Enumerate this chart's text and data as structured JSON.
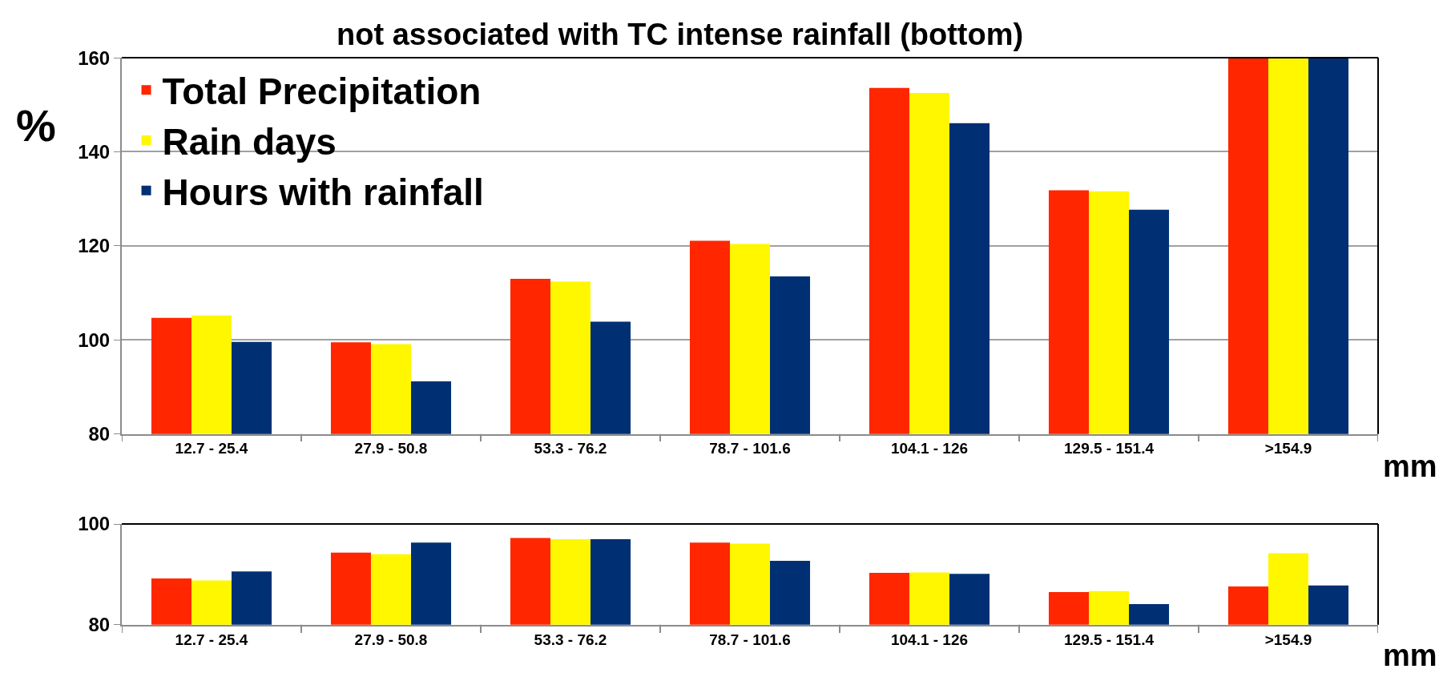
{
  "chart_data": [
    {
      "type": "bar",
      "title": "not associated with TC intense rainfall (bottom)",
      "ylabel": "%",
      "xlabel": "mm",
      "categories": [
        "12.7 - 25.4",
        "27.9 - 50.8",
        "53.3 - 76.2",
        "78.7 - 101.6",
        "104.1 - 126",
        "129.5 - 151.4",
        ">154.9"
      ],
      "series": [
        {
          "name": "Total Precipitation",
          "color": "#ff2600",
          "values": [
            104.7,
            99.5,
            113.0,
            121.1,
            153.6,
            131.8,
            160
          ]
        },
        {
          "name": "Rain days",
          "color": "#fff700",
          "values": [
            105.2,
            99.1,
            112.4,
            120.4,
            152.5,
            131.6,
            160
          ]
        },
        {
          "name": "Hours with rainfall",
          "color": "#003073",
          "values": [
            99.6,
            91.2,
            103.9,
            113.5,
            146.1,
            127.7,
            160
          ]
        }
      ],
      "ylim": [
        80,
        160
      ],
      "yticks": [
        80,
        100,
        120,
        140,
        160
      ],
      "grid": "y",
      "legend": "top left"
    },
    {
      "type": "bar",
      "xlabel": "mm",
      "categories": [
        "12.7 - 25.4",
        "27.9 - 50.8",
        "53.3 - 76.2",
        "78.7 - 101.6",
        "104.1 - 126",
        "129.5 - 151.4",
        ">154.9"
      ],
      "series": [
        {
          "color": "#ff2600",
          "values": [
            89.2,
            94.3,
            97.2,
            96.3,
            90.3,
            86.5,
            87.6
          ]
        },
        {
          "color": "#fff700",
          "values": [
            88.8,
            94.0,
            97.0,
            96.1,
            90.4,
            86.7,
            94.2
          ]
        },
        {
          "color": "#003073",
          "values": [
            90.6,
            96.3,
            97.0,
            92.7,
            90.1,
            84.1,
            87.8
          ]
        }
      ],
      "ylim": [
        80,
        100
      ],
      "yticks": [
        80,
        100
      ]
    }
  ]
}
